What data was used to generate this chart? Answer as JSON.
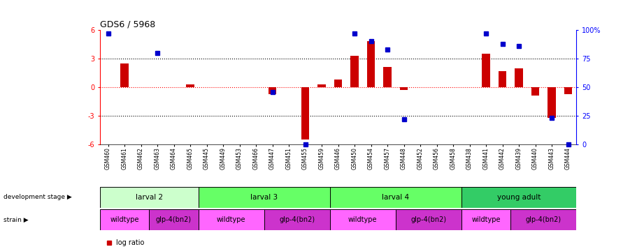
{
  "title": "GDS6 / 5968",
  "samples": [
    "GSM460",
    "GSM461",
    "GSM462",
    "GSM463",
    "GSM464",
    "GSM465",
    "GSM445",
    "GSM449",
    "GSM453",
    "GSM466",
    "GSM447",
    "GSM451",
    "GSM455",
    "GSM459",
    "GSM446",
    "GSM450",
    "GSM454",
    "GSM457",
    "GSM448",
    "GSM452",
    "GSM456",
    "GSM458",
    "GSM438",
    "GSM441",
    "GSM442",
    "GSM439",
    "GSM440",
    "GSM443",
    "GSM444"
  ],
  "log_ratio": [
    0.0,
    2.5,
    0.0,
    0.0,
    0.0,
    0.3,
    0.0,
    0.0,
    0.0,
    0.0,
    -0.7,
    0.0,
    -5.5,
    0.3,
    0.8,
    3.3,
    4.8,
    2.1,
    -0.3,
    0.0,
    0.0,
    0.0,
    0.0,
    3.5,
    1.7,
    2.0,
    -0.9,
    -3.2,
    -0.7
  ],
  "percentile": [
    97,
    null,
    null,
    80,
    null,
    null,
    null,
    null,
    null,
    null,
    46,
    null,
    0,
    null,
    null,
    97,
    90,
    83,
    22,
    null,
    null,
    null,
    null,
    97,
    88,
    86,
    null,
    23,
    0
  ],
  "dev_stage_groups": [
    {
      "label": "larval 2",
      "start": 0,
      "end": 5,
      "color": "#ccffcc"
    },
    {
      "label": "larval 3",
      "start": 6,
      "end": 13,
      "color": "#66ff66"
    },
    {
      "label": "larval 4",
      "start": 14,
      "end": 21,
      "color": "#66ff66"
    },
    {
      "label": "young adult",
      "start": 22,
      "end": 28,
      "color": "#33cc66"
    }
  ],
  "strain_groups": [
    {
      "label": "wildtype",
      "start": 0,
      "end": 2,
      "color": "#ff66ff"
    },
    {
      "label": "glp-4(bn2)",
      "start": 3,
      "end": 5,
      "color": "#cc33cc"
    },
    {
      "label": "wildtype",
      "start": 6,
      "end": 9,
      "color": "#ff66ff"
    },
    {
      "label": "glp-4(bn2)",
      "start": 10,
      "end": 13,
      "color": "#cc33cc"
    },
    {
      "label": "wildtype",
      "start": 14,
      "end": 17,
      "color": "#ff66ff"
    },
    {
      "label": "glp-4(bn2)",
      "start": 18,
      "end": 21,
      "color": "#cc33cc"
    },
    {
      "label": "wildtype",
      "start": 22,
      "end": 24,
      "color": "#ff66ff"
    },
    {
      "label": "glp-4(bn2)",
      "start": 25,
      "end": 28,
      "color": "#cc33cc"
    }
  ],
  "ylim": [
    -6,
    6
  ],
  "y2lim": [
    0,
    100
  ],
  "yticks": [
    -6,
    -3,
    0,
    3,
    6
  ],
  "y2ticks": [
    0,
    25,
    50,
    75,
    100
  ],
  "bar_color": "#cc0000",
  "dot_color": "#0000cc",
  "zero_line_color": "#ff0000",
  "grid_color": "#000000",
  "bg_color": "#ffffff"
}
